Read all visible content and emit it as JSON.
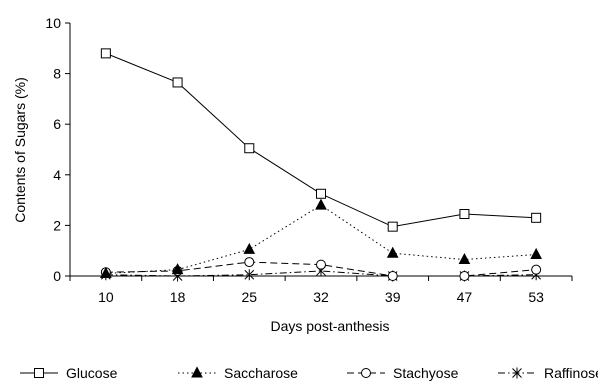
{
  "chart_data": {
    "type": "line",
    "title": "",
    "xlabel": "Days post-anthesis",
    "ylabel": "Contents of Sugars (%)",
    "categories": [
      "10",
      "18",
      "25",
      "32",
      "39",
      "47",
      "53"
    ],
    "ylim": [
      0,
      10
    ],
    "yticks": [
      0,
      2,
      4,
      6,
      8,
      10
    ],
    "grid": false,
    "legend_position": "bottom",
    "series": [
      {
        "name": "Glucose",
        "values": [
          8.8,
          7.65,
          5.05,
          3.25,
          1.95,
          2.45,
          2.3
        ],
        "marker": "open-square",
        "line_style": "solid"
      },
      {
        "name": "Saccharose",
        "values": [
          0.1,
          0.25,
          1.05,
          2.8,
          0.9,
          0.65,
          0.85
        ],
        "marker": "filled-triangle",
        "line_style": "dotted"
      },
      {
        "name": "Stachyose",
        "values": [
          0.15,
          0.2,
          0.55,
          0.45,
          0.0,
          0.0,
          0.25
        ],
        "marker": "open-circle",
        "line_style": "dashed"
      },
      {
        "name": "Raffinose",
        "values": [
          0.05,
          0.0,
          0.05,
          0.2,
          0.0,
          0.0,
          0.05
        ],
        "marker": "asterisk",
        "line_style": "dash-dot"
      }
    ]
  }
}
